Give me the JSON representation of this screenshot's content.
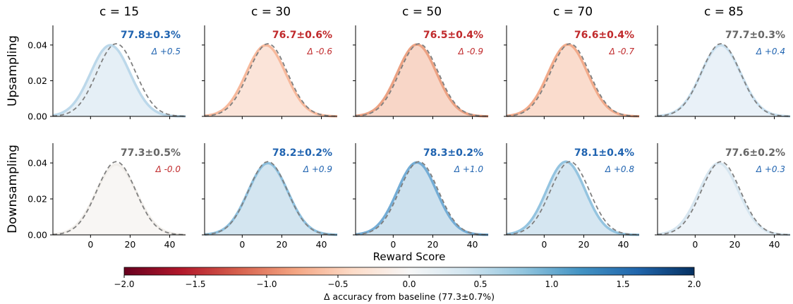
{
  "chart_data": {
    "type": "area",
    "description_rows": [
      "Upsampling",
      "Downsampling"
    ],
    "columns": [
      "c = 15",
      "c = 30",
      "c = 50",
      "c = 70",
      "c = 85"
    ],
    "xlabel": "Reward Score",
    "x_ticks": [
      0,
      20,
      40
    ],
    "xlim": [
      -19,
      48
    ],
    "y_ticks": [
      "0.00",
      "0.02",
      "0.04"
    ],
    "ylim": [
      0,
      0.051
    ],
    "baseline_curve": {
      "style": "dashed",
      "color": "#808080",
      "mean": 13,
      "sd": 9.8
    },
    "panels": [
      [
        {
          "acc": "77.8±0.3%",
          "delta": "Δ +0.5",
          "delta_value": 0.5,
          "acc_color": "#1f63b0",
          "delta_color": "#1f63b0",
          "fill": "#e5eff6",
          "line": "#bcd8ea",
          "mean": 10,
          "sd": 10.0
        },
        {
          "acc": "76.7±0.6%",
          "delta": "Δ -0.6",
          "delta_value": -0.6,
          "acc_color": "#c0292b",
          "delta_color": "#c0292b",
          "fill": "#fbe4d9",
          "line": "#f7b99c",
          "mean": 12,
          "sd": 10.0
        },
        {
          "acc": "76.5±0.4%",
          "delta": "Δ -0.9",
          "delta_value": -0.9,
          "acc_color": "#c0292b",
          "delta_color": "#c0292b",
          "fill": "#f8d6c7",
          "line": "#eca283",
          "mean": 12,
          "sd": 9.9
        },
        {
          "acc": "76.6±0.4%",
          "delta": "Δ -0.7",
          "delta_value": -0.7,
          "acc_color": "#c0292b",
          "delta_color": "#c0292b",
          "fill": "#fadccd",
          "line": "#f2ab8b",
          "mean": 12,
          "sd": 9.9
        },
        {
          "acc": "77.7±0.3%",
          "delta": "Δ +0.4",
          "delta_value": 0.4,
          "acc_color": "#666666",
          "delta_color": "#1f63b0",
          "fill": "#e9f1f8",
          "line": "#c9e0ef",
          "mean": 13,
          "sd": 10.0
        }
      ],
      [
        {
          "acc": "77.3±0.5%",
          "delta": "Δ -0.0",
          "delta_value": 0.0,
          "acc_color": "#666666",
          "delta_color": "#c0292b",
          "fill": "#f8f6f4",
          "line": "#f1eeea",
          "mean": 13,
          "sd": 10.2
        },
        {
          "acc": "78.2±0.2%",
          "delta": "Δ +0.9",
          "delta_value": 0.9,
          "acc_color": "#1f63b0",
          "delta_color": "#1f63b0",
          "fill": "#d3e5f0",
          "line": "#8ec0de",
          "mean": 13,
          "sd": 10.0
        },
        {
          "acc": "78.3±0.2%",
          "delta": "Δ +1.0",
          "delta_value": 1.0,
          "acc_color": "#1f63b0",
          "delta_color": "#1f63b0",
          "fill": "#cde1ee",
          "line": "#74add6",
          "mean": 12,
          "sd": 9.9
        },
        {
          "acc": "78.1±0.4%",
          "delta": "Δ +0.8",
          "delta_value": 0.8,
          "acc_color": "#1f63b0",
          "delta_color": "#1f63b0",
          "fill": "#d5e6f1",
          "line": "#94c4e0",
          "mean": 11,
          "sd": 9.8
        },
        {
          "acc": "77.6±0.2%",
          "delta": "Δ +0.3",
          "delta_value": 0.3,
          "acc_color": "#666666",
          "delta_color": "#1f63b0",
          "fill": "#edf3f8",
          "line": "#d7e6f0",
          "mean": 12,
          "sd": 10.0
        }
      ]
    ],
    "colorbar": {
      "colormap": "RdBu",
      "range": [
        -2.0,
        2.0
      ],
      "ticks": [
        "−2.0",
        "−1.5",
        "−1.0",
        "−0.5",
        "0.0",
        "0.5",
        "1.0",
        "1.5",
        "2.0"
      ],
      "label": "Δ accuracy from baseline (77.3±0.7%)",
      "stops": [
        "#67001f",
        "#b2182b",
        "#d6604d",
        "#f4a582",
        "#fddbc7",
        "#f7f7f7",
        "#d1e5f0",
        "#92c5de",
        "#4393c3",
        "#2166ac",
        "#053061"
      ]
    }
  }
}
